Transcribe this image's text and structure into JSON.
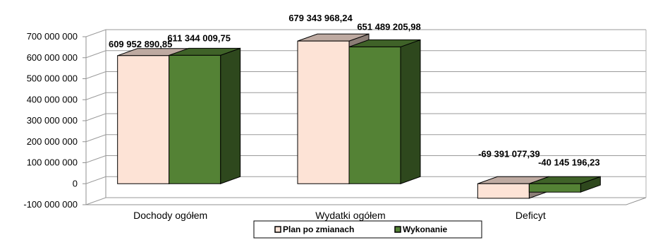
{
  "chart_data": {
    "type": "bar",
    "three_d": true,
    "grid": true,
    "legend_position": "bottom",
    "categories": [
      "Dochody ogółem",
      "Wydatki ogółem",
      "Deficyt"
    ],
    "series": [
      {
        "name": "Plan po zmianach",
        "color": "#fde3d6",
        "values": [
          609952890.85,
          679343968.24,
          -69391077.39
        ],
        "labels": [
          "609 952 890,85",
          "679 343 968,24",
          "-69 391 077,39"
        ]
      },
      {
        "name": "Wykonanie",
        "color": "#548235",
        "values": [
          611344009.75,
          651489205.98,
          -40145196.23
        ],
        "labels": [
          "611 344 009,75",
          "651 489 205,98",
          "-40 145 196,23"
        ]
      }
    ],
    "ylim": [
      -100000000,
      700000000
    ],
    "yticks": [
      700000000,
      600000000,
      500000000,
      400000000,
      300000000,
      200000000,
      100000000,
      0,
      -100000000
    ],
    "ytick_labels": [
      "700 000 000",
      "600 000 000",
      "500 000 000",
      "400 000 000",
      "300 000 000",
      "200 000 000",
      "100 000 000",
      "0",
      "-100 000 000"
    ],
    "title": "",
    "xlabel": "",
    "ylabel": ""
  }
}
